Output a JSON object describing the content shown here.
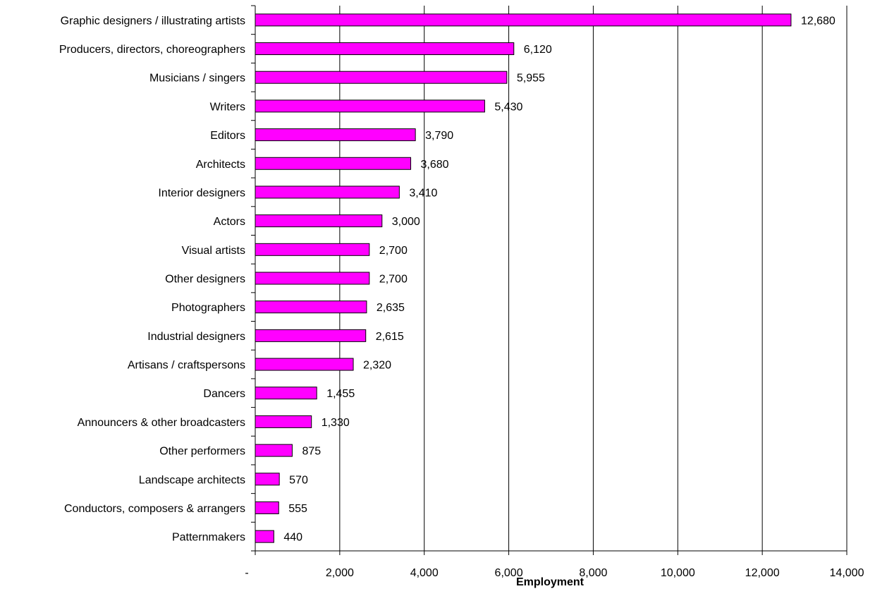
{
  "chart_data": {
    "type": "bar",
    "orientation": "horizontal",
    "title": "",
    "xlabel": "Employment",
    "ylabel": "",
    "xlim": [
      0,
      14000
    ],
    "x_ticks": [
      0,
      2000,
      4000,
      6000,
      8000,
      10000,
      12000,
      14000
    ],
    "x_tick_labels": [
      "-",
      "2,000",
      "4,000",
      "6,000",
      "8,000",
      "10,000",
      "12,000",
      "14,000"
    ],
    "grid": "vertical",
    "legend": "none",
    "bar_color": "#ff00ff",
    "bar_edge_color": "#000000",
    "categories": [
      "Graphic designers / illustrating artists",
      "Producers, directors, choreographers",
      "Musicians / singers",
      "Writers",
      "Editors",
      "Architects",
      "Interior designers",
      "Actors",
      "Visual artists",
      "Other designers",
      "Photographers",
      "Industrial designers",
      "Artisans / craftspersons",
      "Dancers",
      "Announcers & other broadcasters",
      "Other performers",
      "Landscape architects",
      "Conductors, composers & arrangers",
      "Patternmakers"
    ],
    "values": [
      12680,
      6120,
      5955,
      5430,
      3790,
      3680,
      3410,
      3000,
      2700,
      2700,
      2635,
      2615,
      2320,
      1455,
      1330,
      875,
      570,
      555,
      440
    ],
    "value_labels": [
      "12,680",
      "6,120",
      "5,955",
      "5,430",
      "3,790",
      "3,680",
      "3,410",
      "3,000",
      "2,700",
      "2,700",
      "2,635",
      "2,615",
      "2,320",
      "1,455",
      "1,330",
      "875",
      "570",
      "555",
      "440"
    ]
  }
}
